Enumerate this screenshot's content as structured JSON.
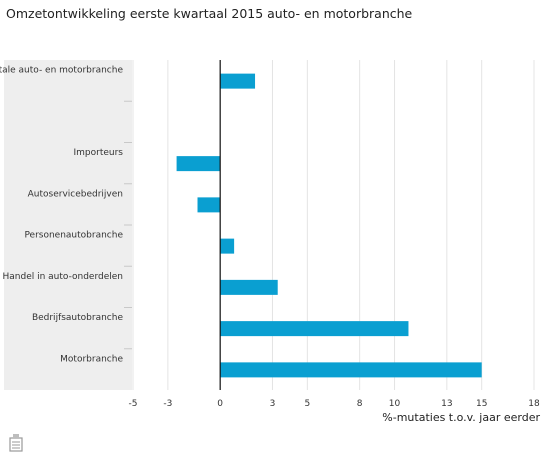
{
  "title": "Omzetontwikkeling eerste kwartaal 2015 auto- en motorbranche",
  "chart_data": {
    "type": "bar",
    "orientation": "horizontal",
    "categories": [
      "Totale auto- en motorbranche",
      "",
      "Importeurs",
      "Autoservicebedrijven",
      "Personenautobranche",
      "Handel in auto-onderdelen",
      "Bedrijfsautobranche",
      "Motorbranche"
    ],
    "values": [
      2,
      null,
      -2.5,
      -1.3,
      0.8,
      3.3,
      10.8,
      15
    ],
    "xlabel": "%-mutaties t.o.v. jaar eerder",
    "xlim": [
      -5,
      18
    ],
    "xticks": [
      "-5",
      "-3",
      "0",
      "3",
      "5",
      "8",
      "10",
      "13",
      "15",
      "18"
    ],
    "grid": true,
    "bar_color": "#0a9fd1"
  }
}
